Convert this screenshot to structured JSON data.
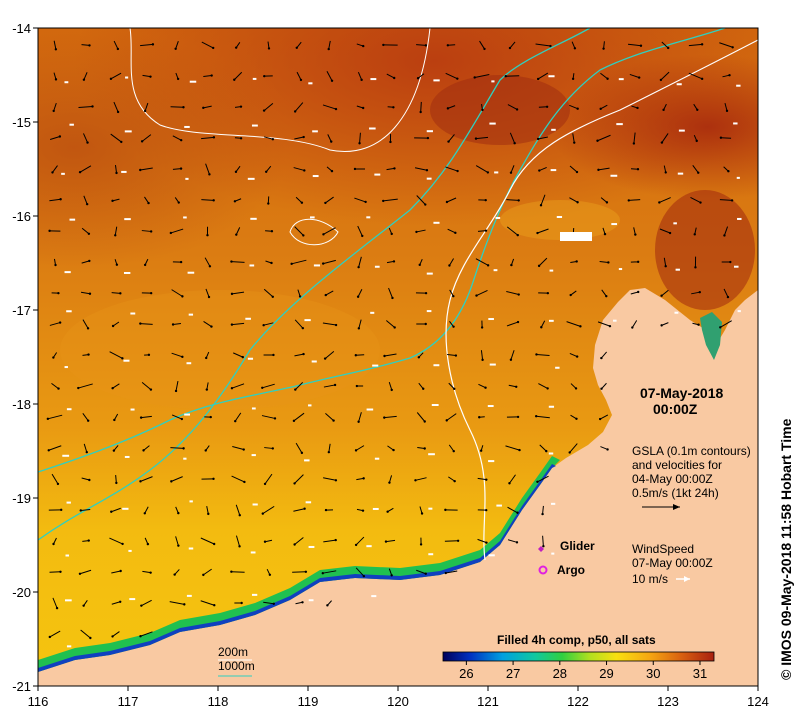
{
  "map": {
    "date_line1": "07-May-2018",
    "date_line2": "00:00Z",
    "gsla_lines": [
      "GSLA (0.1m contours)",
      "and velocities for",
      "04-May 00:00Z",
      "0.5m/s (1kt 24h)"
    ],
    "wind_lines": [
      "WindSpeed",
      "07-May 00:00Z",
      "10 m/s"
    ],
    "glider_label": "Glider",
    "argo_label": "Argo",
    "depth_200": "200m",
    "depth_1000": "1000m",
    "colorbar_title": "Filled 4h comp, p50, all sats",
    "colorbar_ticks": [
      "26",
      "27",
      "28",
      "29",
      "30",
      "31"
    ],
    "colorbar_range": [
      25.5,
      31.3
    ],
    "credit": "© IMOS 09-May-2018 11:58 Hobart Time",
    "x_ticks": [
      "116",
      "117",
      "118",
      "119",
      "120",
      "121",
      "122",
      "123",
      "124"
    ],
    "y_ticks": [
      "-14",
      "-15",
      "-16",
      "-17",
      "-18",
      "-19",
      "-20",
      "-21"
    ],
    "lon_range": [
      116,
      124
    ],
    "lat_range": [
      -21,
      -14
    ],
    "colors": {
      "land": "#f9c9a2",
      "ocean_warm": "#d87a12",
      "contour_200": "#ffffff",
      "contour_1000": "#2fd0c0",
      "glider": "#c020c0",
      "argo": "#e020e0"
    }
  }
}
